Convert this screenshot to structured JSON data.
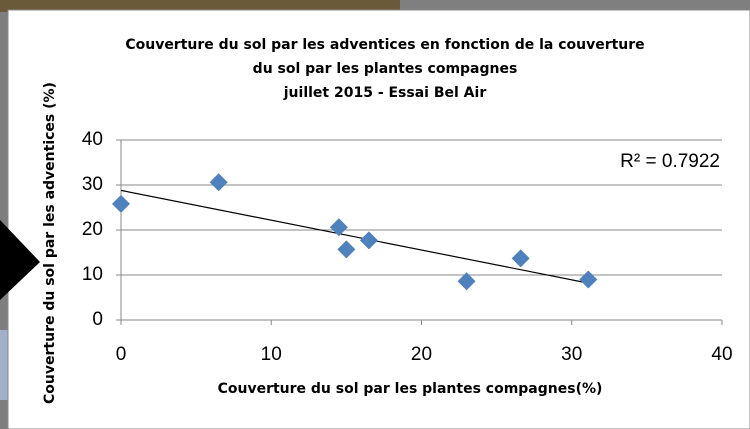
{
  "chart_data": {
    "type": "scatter",
    "title": [
      "Couverture du sol par les adventices en fonction de la couverture",
      "du sol par les plantes compagnes",
      "juillet 2015 - Essai Bel Air"
    ],
    "x_label": "Couverture du sol par les plantes compagnes(%)",
    "y_label": "Couverture du sol par les adventices  (%)",
    "annotation": "R² = 0.7922",
    "x": [
      0,
      6.5,
      14.5,
      15,
      16.5,
      23,
      26.6,
      31.1
    ],
    "y": [
      25.8,
      30.6,
      20.6,
      15.7,
      17.7,
      8.6,
      13.7,
      9
    ],
    "color": "#4f81bd",
    "trendline": {
      "x": [
        0,
        31.1
      ],
      "y": [
        28.8,
        8.2
      ],
      "color": "#000000"
    },
    "xlim": [
      0,
      40
    ],
    "xticks": [
      0,
      10,
      20,
      30,
      40
    ],
    "ylim": [
      0,
      40
    ],
    "yticks": [
      0,
      10,
      20,
      30,
      40
    ],
    "grid": true
  }
}
